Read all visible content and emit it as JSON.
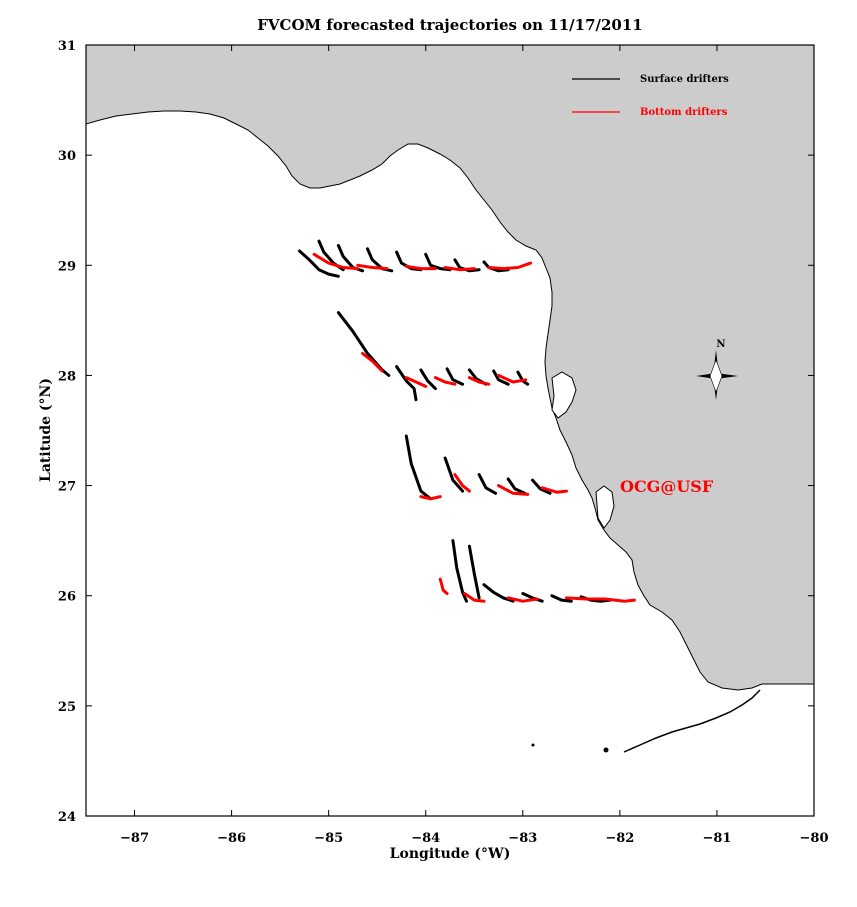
{
  "title": "FVCOM forecasted trajectories on 11/17/2011",
  "axes": {
    "xlabel": "Longitude (°W)",
    "ylabel": "Latitude (°N)",
    "xlim": [
      -87.5,
      -80
    ],
    "ylim": [
      24,
      31
    ],
    "xticks": [
      -87,
      -86,
      -85,
      -84,
      -83,
      -82,
      -81,
      -80
    ],
    "yticks": [
      24,
      25,
      26,
      27,
      28,
      29,
      30,
      31
    ]
  },
  "legend": {
    "placement": "top-right",
    "items": [
      {
        "label": "Surface drifters",
        "color": "#000000"
      },
      {
        "label": "Bottom drifters",
        "color": "#ff0000"
      }
    ]
  },
  "north_arrow": {
    "label": "N"
  },
  "watermark": {
    "text": "OCG@USF",
    "color": "#ff0000"
  },
  "colors": {
    "land": "#cccccc",
    "surface": "#000000",
    "bottom": "#ff0000"
  },
  "chart_data": {
    "type": "scatter",
    "title": "FVCOM forecasted trajectories on 11/17/2011",
    "xlabel": "Longitude (°W)",
    "ylabel": "Latitude (°N)",
    "xlim": [
      -87.5,
      -80
    ],
    "ylim": [
      24,
      31
    ],
    "grid": false,
    "series": [
      {
        "name": "Surface drifters",
        "color": "#000000",
        "trajectories": [
          [
            [
              -85.3,
              29.13
            ],
            [
              -85.2,
              29.05
            ],
            [
              -85.1,
              28.96
            ],
            [
              -85.0,
              28.92
            ],
            [
              -84.9,
              28.9
            ]
          ],
          [
            [
              -85.1,
              29.22
            ],
            [
              -85.05,
              29.12
            ],
            [
              -84.95,
              29.02
            ],
            [
              -84.85,
              28.96
            ]
          ],
          [
            [
              -84.9,
              29.18
            ],
            [
              -84.85,
              29.08
            ],
            [
              -84.75,
              28.98
            ],
            [
              -84.65,
              28.95
            ]
          ],
          [
            [
              -84.6,
              29.15
            ],
            [
              -84.55,
              29.05
            ],
            [
              -84.45,
              28.97
            ],
            [
              -84.35,
              28.95
            ]
          ],
          [
            [
              -84.3,
              29.12
            ],
            [
              -84.25,
              29.02
            ],
            [
              -84.15,
              28.97
            ],
            [
              -84.05,
              28.96
            ]
          ],
          [
            [
              -84.0,
              29.1
            ],
            [
              -83.95,
              29.0
            ],
            [
              -83.85,
              28.97
            ],
            [
              -83.75,
              28.96
            ]
          ],
          [
            [
              -83.7,
              29.05
            ],
            [
              -83.65,
              28.98
            ],
            [
              -83.55,
              28.95
            ],
            [
              -83.45,
              28.96
            ]
          ],
          [
            [
              -83.4,
              29.03
            ],
            [
              -83.35,
              28.98
            ],
            [
              -83.25,
              28.95
            ],
            [
              -83.15,
              28.96
            ]
          ],
          [
            [
              -84.9,
              28.57
            ],
            [
              -84.75,
              28.4
            ],
            [
              -84.6,
              28.2
            ],
            [
              -84.45,
              28.05
            ],
            [
              -84.38,
              28.0
            ]
          ],
          [
            [
              -84.3,
              28.08
            ],
            [
              -84.2,
              27.95
            ],
            [
              -84.12,
              27.88
            ],
            [
              -84.1,
              27.78
            ]
          ],
          [
            [
              -84.05,
              28.05
            ],
            [
              -83.98,
              27.95
            ],
            [
              -83.9,
              27.88
            ]
          ],
          [
            [
              -83.78,
              28.06
            ],
            [
              -83.72,
              27.96
            ],
            [
              -83.62,
              27.92
            ]
          ],
          [
            [
              -83.55,
              28.05
            ],
            [
              -83.48,
              27.97
            ],
            [
              -83.38,
              27.92
            ]
          ],
          [
            [
              -83.3,
              28.04
            ],
            [
              -83.25,
              27.96
            ],
            [
              -83.15,
              27.92
            ]
          ],
          [
            [
              -83.05,
              28.03
            ],
            [
              -83.0,
              27.95
            ],
            [
              -82.95,
              27.92
            ]
          ],
          [
            [
              -84.2,
              27.45
            ],
            [
              -84.15,
              27.2
            ],
            [
              -84.05,
              26.95
            ],
            [
              -83.95,
              26.88
            ]
          ],
          [
            [
              -83.8,
              27.25
            ],
            [
              -83.72,
              27.05
            ],
            [
              -83.62,
              26.95
            ]
          ],
          [
            [
              -83.45,
              27.1
            ],
            [
              -83.38,
              26.98
            ],
            [
              -83.28,
              26.93
            ]
          ],
          [
            [
              -83.15,
              27.06
            ],
            [
              -83.08,
              26.97
            ],
            [
              -82.98,
              26.93
            ]
          ],
          [
            [
              -82.9,
              27.05
            ],
            [
              -82.82,
              26.97
            ],
            [
              -82.72,
              26.93
            ]
          ],
          [
            [
              -83.72,
              26.5
            ],
            [
              -83.68,
              26.25
            ],
            [
              -83.62,
              26.03
            ],
            [
              -83.58,
              25.95
            ]
          ],
          [
            [
              -83.55,
              26.45
            ],
            [
              -83.5,
              26.2
            ],
            [
              -83.45,
              25.98
            ]
          ],
          [
            [
              -83.4,
              26.1
            ],
            [
              -83.3,
              26.03
            ],
            [
              -83.2,
              25.98
            ],
            [
              -83.1,
              25.95
            ]
          ],
          [
            [
              -83.0,
              26.02
            ],
            [
              -82.9,
              25.98
            ],
            [
              -82.8,
              25.95
            ]
          ],
          [
            [
              -82.7,
              26.0
            ],
            [
              -82.6,
              25.96
            ],
            [
              -82.5,
              25.95
            ]
          ],
          [
            [
              -82.4,
              25.99
            ],
            [
              -82.3,
              25.96
            ],
            [
              -82.2,
              25.95
            ],
            [
              -82.1,
              25.96
            ]
          ]
        ]
      },
      {
        "name": "Bottom drifters",
        "color": "#ff0000",
        "trajectories": [
          [
            [
              -85.15,
              29.1
            ],
            [
              -85.0,
              29.02
            ],
            [
              -84.85,
              28.98
            ],
            [
              -84.7,
              28.97
            ]
          ],
          [
            [
              -84.7,
              29.0
            ],
            [
              -84.55,
              28.98
            ],
            [
              -84.4,
              28.97
            ]
          ],
          [
            [
              -84.2,
              28.99
            ],
            [
              -84.05,
              28.97
            ],
            [
              -83.9,
              28.97
            ]
          ],
          [
            [
              -83.8,
              28.98
            ],
            [
              -83.65,
              28.96
            ],
            [
              -83.5,
              28.97
            ]
          ],
          [
            [
              -83.35,
              28.98
            ],
            [
              -83.2,
              28.97
            ],
            [
              -83.05,
              28.98
            ],
            [
              -82.92,
              29.02
            ]
          ],
          [
            [
              -84.65,
              28.2
            ],
            [
              -84.55,
              28.13
            ],
            [
              -84.45,
              28.04
            ]
          ],
          [
            [
              -84.2,
              27.98
            ],
            [
              -84.1,
              27.94
            ],
            [
              -84.0,
              27.9
            ]
          ],
          [
            [
              -83.9,
              27.98
            ],
            [
              -83.8,
              27.94
            ],
            [
              -83.7,
              27.92
            ]
          ],
          [
            [
              -83.55,
              27.98
            ],
            [
              -83.45,
              27.94
            ],
            [
              -83.35,
              27.92
            ]
          ],
          [
            [
              -83.25,
              28.0
            ],
            [
              -83.1,
              27.94
            ],
            [
              -82.97,
              27.96
            ]
          ],
          [
            [
              -84.05,
              26.9
            ],
            [
              -83.95,
              26.88
            ],
            [
              -83.85,
              26.9
            ]
          ],
          [
            [
              -83.7,
              27.1
            ],
            [
              -83.62,
              27.0
            ],
            [
              -83.55,
              26.95
            ]
          ],
          [
            [
              -83.25,
              27.0
            ],
            [
              -83.1,
              26.93
            ],
            [
              -82.95,
              26.92
            ]
          ],
          [
            [
              -82.8,
              26.98
            ],
            [
              -82.65,
              26.94
            ],
            [
              -82.55,
              26.95
            ]
          ],
          [
            [
              -83.85,
              26.15
            ],
            [
              -83.82,
              26.05
            ],
            [
              -83.78,
              26.02
            ]
          ],
          [
            [
              -83.6,
              26.02
            ],
            [
              -83.5,
              25.96
            ],
            [
              -83.4,
              25.95
            ]
          ],
          [
            [
              -83.15,
              25.98
            ],
            [
              -83.0,
              25.95
            ],
            [
              -82.85,
              25.97
            ]
          ],
          [
            [
              -82.55,
              25.98
            ],
            [
              -82.35,
              25.97
            ],
            [
              -82.15,
              25.97
            ],
            [
              -81.95,
              25.95
            ],
            [
              -81.85,
              25.96
            ]
          ]
        ]
      }
    ]
  }
}
